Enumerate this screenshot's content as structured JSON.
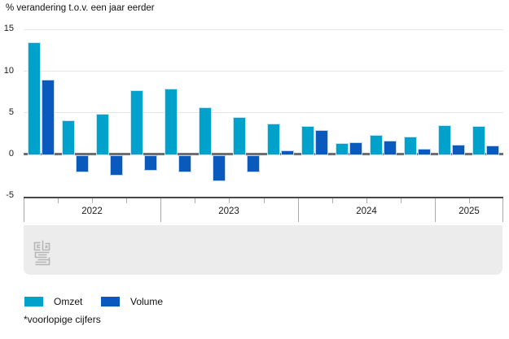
{
  "chart_data": {
    "type": "bar",
    "title": "% verandering t.o.v. een jaar eerder",
    "xlabel": "",
    "ylabel": "% verandering t.o.v. een jaar eerder",
    "ylim": [
      -5,
      15
    ],
    "yticks": [
      15,
      10,
      5,
      0,
      -5
    ],
    "grid": true,
    "legend_position": "bottom",
    "categories": [
      "2022-Q1",
      "2022-Q2",
      "2022-Q3",
      "2022-Q4",
      "2023-Q1",
      "2023-Q2",
      "2023-Q3",
      "2023-Q4",
      "2024-Q1",
      "2024-Q2",
      "2024-Q3",
      "2024-Q4",
      "2025-Q1",
      "2025-Q2"
    ],
    "year_groups": [
      {
        "label": "2022",
        "quarters": 4
      },
      {
        "label": "2023",
        "quarters": 4
      },
      {
        "label": "2024",
        "quarters": 4
      },
      {
        "label": "2025",
        "quarters": 2
      }
    ],
    "series": [
      {
        "name": "Omzet",
        "color": "#00a2cc",
        "values": [
          13.4,
          4.0,
          4.8,
          7.6,
          7.8,
          5.6,
          4.4,
          3.6,
          3.3,
          1.3,
          2.2,
          2.0,
          3.4,
          3.3
        ]
      },
      {
        "name": "Volume",
        "color": "#0a5abe",
        "values": [
          8.9,
          -2.2,
          -2.6,
          -2.0,
          -2.2,
          -3.3,
          -2.2,
          0.4,
          2.8,
          1.4,
          1.6,
          0.6,
          1.1,
          1.0
        ]
      }
    ]
  },
  "footnote": "*voorlopige cijfers",
  "logo": {
    "name": "cbs-logo",
    "color": "#b5b5b5"
  },
  "colors": {
    "gridline": "#e6e6e6",
    "zero_line": "#6f6f6f",
    "axis_line": "#474747",
    "band_background": "#ececec"
  }
}
